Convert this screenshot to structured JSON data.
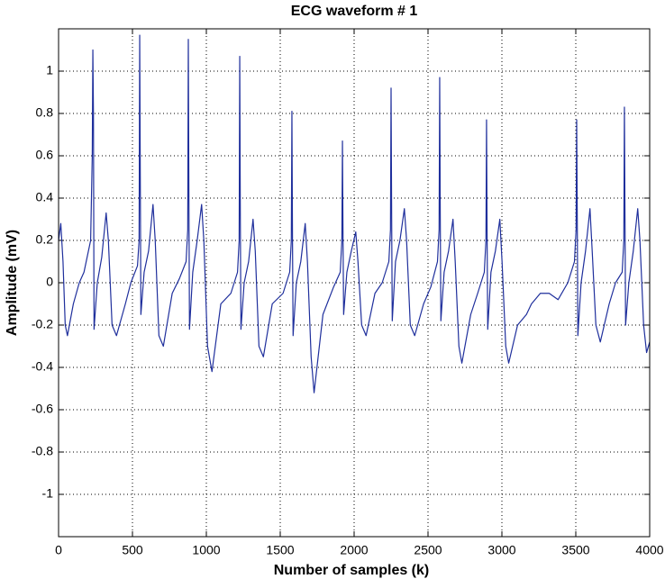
{
  "chart_data": {
    "type": "line",
    "title": "ECG waveform # 1",
    "xlabel": "Number of samples (k)",
    "ylabel": "Amplitude (mV)",
    "x": [
      0,
      15,
      30,
      45,
      60,
      100,
      140,
      172,
      217,
      228,
      232,
      236,
      240,
      262,
      292,
      322,
      337,
      362,
      392,
      452,
      489,
      534,
      545,
      549,
      553,
      557,
      579,
      609,
      639,
      654,
      679,
      709,
      769,
      818,
      863,
      874,
      878,
      882,
      886,
      908,
      938,
      968,
      983,
      1008,
      1038,
      1098,
      1166,
      1211,
      1222,
      1226,
      1230,
      1234,
      1256,
      1286,
      1316,
      1331,
      1356,
      1386,
      1446,
      1519,
      1564,
      1575,
      1579,
      1583,
      1587,
      1609,
      1639,
      1669,
      1684,
      1709,
      1729,
      1789,
      1861,
      1906,
      1917,
      1921,
      1925,
      1929,
      1951,
      1981,
      2011,
      2026,
      2051,
      2081,
      2141,
      2190,
      2235,
      2246,
      2250,
      2254,
      2258,
      2280,
      2310,
      2340,
      2355,
      2380,
      2410,
      2470,
      2519,
      2564,
      2575,
      2579,
      2583,
      2587,
      2609,
      2639,
      2669,
      2684,
      2709,
      2729,
      2789,
      2836,
      2881,
      2892,
      2896,
      2900,
      2904,
      2926,
      2956,
      2986,
      3001,
      3026,
      3046,
      3106,
      3166,
      3200,
      3260,
      3320,
      3380,
      3446,
      3491,
      3502,
      3506,
      3510,
      3514,
      3536,
      3566,
      3596,
      3611,
      3636,
      3666,
      3726,
      3769,
      3814,
      3825,
      3829,
      3833,
      3837,
      3859,
      3889,
      3919,
      3934,
      3959,
      3979,
      4000
    ],
    "values": [
      0.2,
      0.28,
      0.1,
      -0.2,
      -0.25,
      -0.1,
      0.0,
      0.05,
      0.2,
      0.6,
      1.1,
      0.8,
      -0.22,
      0.0,
      0.12,
      0.33,
      0.2,
      -0.2,
      -0.25,
      -0.1,
      0.0,
      0.08,
      0.2,
      1.17,
      0.5,
      -0.15,
      0.05,
      0.15,
      0.37,
      0.2,
      -0.25,
      -0.3,
      -0.05,
      0.02,
      0.1,
      0.25,
      1.15,
      0.4,
      -0.22,
      0.05,
      0.2,
      0.37,
      0.2,
      -0.3,
      -0.42,
      -0.1,
      -0.05,
      0.05,
      0.2,
      1.07,
      0.3,
      -0.22,
      0.0,
      0.1,
      0.3,
      0.15,
      -0.3,
      -0.35,
      -0.1,
      -0.05,
      0.05,
      0.2,
      0.81,
      0.2,
      -0.25,
      0.0,
      0.1,
      0.28,
      0.1,
      -0.35,
      -0.52,
      -0.15,
      -0.02,
      0.05,
      0.2,
      0.67,
      0.2,
      -0.15,
      0.05,
      0.15,
      0.24,
      0.1,
      -0.2,
      -0.25,
      -0.05,
      0.0,
      0.1,
      0.25,
      0.92,
      0.3,
      -0.18,
      0.1,
      0.2,
      0.35,
      0.2,
      -0.2,
      -0.25,
      -0.1,
      -0.02,
      0.1,
      0.25,
      0.97,
      0.3,
      -0.18,
      0.05,
      0.15,
      0.3,
      0.1,
      -0.3,
      -0.38,
      -0.15,
      -0.05,
      0.05,
      0.2,
      0.77,
      0.2,
      -0.22,
      0.05,
      0.15,
      0.3,
      0.1,
      -0.3,
      -0.38,
      -0.2,
      -0.15,
      -0.1,
      -0.05,
      -0.05,
      -0.08,
      0.0,
      0.1,
      0.25,
      0.77,
      0.3,
      -0.25,
      0.0,
      0.15,
      0.35,
      0.15,
      -0.2,
      -0.28,
      -0.1,
      0.0,
      0.05,
      0.2,
      0.83,
      0.3,
      -0.2,
      0.0,
      0.15,
      0.35,
      0.2,
      -0.2,
      -0.33,
      -0.28
    ],
    "color": "#1f2f9c",
    "xlim": [
      0,
      4000
    ],
    "xticks": [
      0,
      500,
      1000,
      1500,
      2000,
      2500,
      3000,
      3500,
      4000
    ],
    "ylim": [
      -1.2,
      1.2
    ],
    "yticks": [
      -1,
      -0.8,
      -0.6,
      -0.4,
      -0.2,
      0,
      0.2,
      0.4,
      0.6,
      0.8,
      1
    ],
    "grid": true
  }
}
